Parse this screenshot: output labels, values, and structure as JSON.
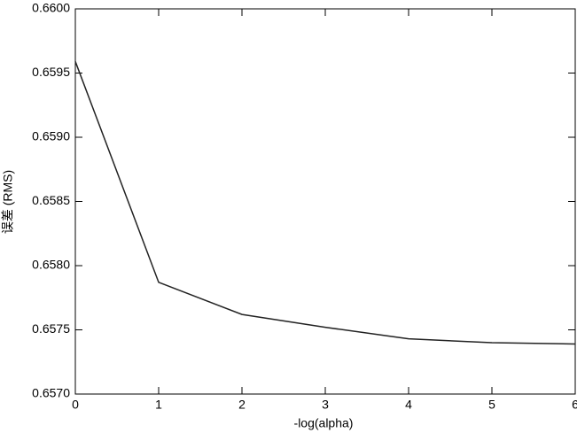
{
  "chart_data": {
    "type": "line",
    "x_label": "-log(alpha)",
    "y_label": "误差 (RMS)",
    "x": [
      0,
      1,
      2,
      3,
      4,
      5,
      6
    ],
    "series": [
      {
        "color": "#222222",
        "values": [
          0.65959,
          0.65787,
          0.65762,
          0.65752,
          0.65743,
          0.6574,
          0.65739
        ]
      }
    ],
    "xlim": [
      0,
      6
    ],
    "xticks": [
      0,
      1,
      2,
      3,
      4,
      5,
      6
    ],
    "ylim": [
      0.657,
      0.66
    ],
    "yticks": [
      {
        "value": 0.657,
        "label": "0.6570"
      },
      {
        "value": 0.6575,
        "label": "0.6575"
      },
      {
        "value": 0.658,
        "label": "0.6580"
      },
      {
        "value": 0.6585,
        "label": "0.6585"
      },
      {
        "value": 0.659,
        "label": "0.6590"
      },
      {
        "value": 0.6595,
        "label": "0.6595"
      },
      {
        "value": 0.66,
        "label": "0.6600"
      }
    ]
  }
}
